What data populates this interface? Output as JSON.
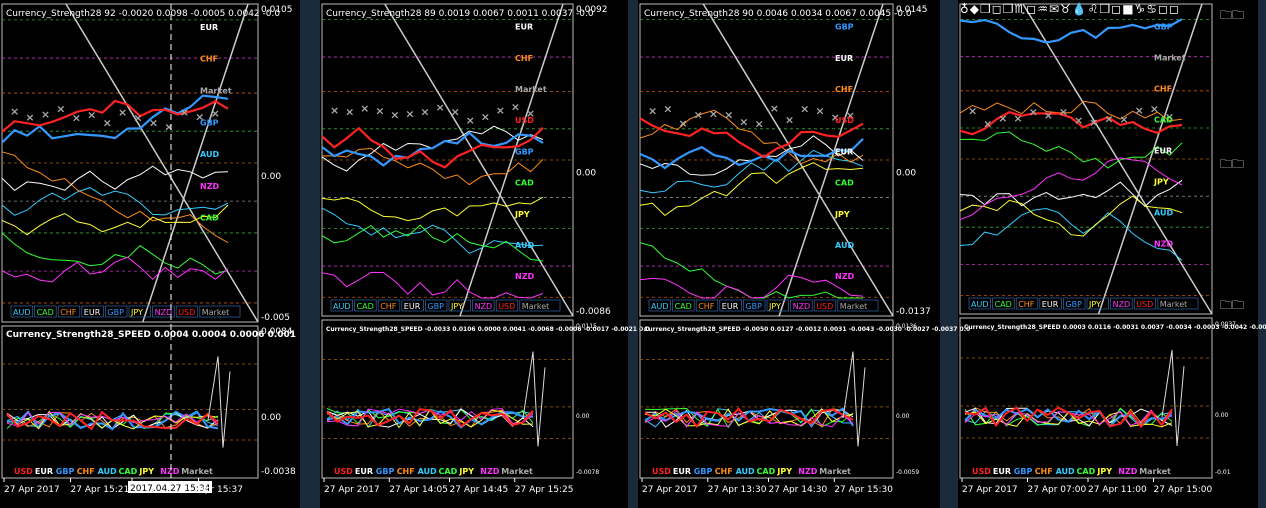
{
  "charts": [
    {
      "header": "Currency_Strength28 92 -0.0020 0.0098 -0.0005 0.0042 -0.0",
      "y_top": "0.0105",
      "y_mid": "0.00",
      "y_bot": "-0.005",
      "labels": [
        "EUR",
        "CHF",
        "Market",
        "GBP",
        "AUD",
        "NZD",
        "CAD"
      ],
      "legend": [
        "AUD",
        "CAD",
        "CHF",
        "EUR",
        "GBP",
        "JPY",
        "NZD",
        "USD",
        "Market"
      ],
      "speed_header": "Currency_Strength28_SPEED  0.0004 0.0004 0.0006 0.001",
      "speed_top": "0.0084",
      "speed_mid": "0.00",
      "speed_bot": "-0.0038",
      "speed_legend": [
        "USD",
        "EUR",
        "GBP",
        "CHF",
        "AUD",
        "CAD",
        "JPY",
        "NZD",
        "Market"
      ],
      "times": [
        "27 Apr 2017",
        "27 Apr 15:21",
        "2017.04.27 15:34",
        "Apr 15:37"
      ]
    },
    {
      "header": "Currency_Strength28 89 0.0019 0.0067 0.0011 0.0037 -0.0",
      "y_top": "0.0092",
      "y_mid": "0.00",
      "y_bot": "-0.0086",
      "labels": [
        "EUR",
        "CHF",
        "Market",
        "USD",
        "GBP",
        "CAD",
        "JPY",
        "AUD",
        "NZD"
      ],
      "legend": [
        "AUD",
        "CAD",
        "CHF",
        "EUR",
        "GBP",
        "JPY",
        "NZD",
        "USD",
        "Market"
      ],
      "speed_header": "Currency_Strength28_SPEED  -0.0033 0.0106 0.0000 0.0041 -0.0068 -0.0006 -0.0017 -0.0021 0.0",
      "speed_top": "0.0115",
      "speed_mid": "0.00",
      "speed_bot": "-0.0078",
      "speed_legend": [
        "USD",
        "EUR",
        "GBP",
        "CHF",
        "AUD",
        "CAD",
        "JPY",
        "NZD",
        "Market"
      ],
      "times": [
        "27 Apr 2017",
        "27 Apr 14:05",
        "27 Apr 14:45",
        "27 Apr 15:25"
      ]
    },
    {
      "header": "Currency_Strength28 90 0.0046 0.0034 0.0067 0.0045 -0.0",
      "y_top": "0.0145",
      "y_mid": "0.00",
      "y_bot": "-0.0137",
      "labels": [
        "GBP",
        "EUR",
        "CHF",
        "USD",
        "EUR",
        "CAD",
        "JPY",
        "AUD",
        "NZD"
      ],
      "legend": [
        "AUD",
        "CAD",
        "CHF",
        "EUR",
        "GBP",
        "JPY",
        "NZD",
        "USD",
        "Market"
      ],
      "speed_header": "Currency_Strength28_SPEED  -0.0050 0.0127 -0.0012 0.0031 -0.0043 -0.0030 -0.0027 -0.0037 0.0",
      "speed_top": "0.0136",
      "speed_mid": "0.00",
      "speed_bot": "-0.0059",
      "speed_legend": [
        "USD",
        "EUR",
        "GBP",
        "CHF",
        "AUD",
        "CAD",
        "JPY",
        "NZD",
        "Market"
      ],
      "times": [
        "27 Apr 2017",
        "27 Apr 13:30",
        "27 Apr 14:30",
        "27 Apr 15:30"
      ]
    },
    {
      "header": "",
      "y_top": "",
      "y_mid": "",
      "y_bot": "",
      "labels": [
        "GBP",
        "Market",
        "CHF",
        "CAD",
        "EUR",
        "JPY",
        "AUD",
        "NZD"
      ],
      "legend": [
        "AUD",
        "CAD",
        "CHF",
        "EUR",
        "GBP",
        "JPY",
        "NZD",
        "USD",
        "Market"
      ],
      "speed_header": "Currency_Strength28_SPEED  0.0003 0.0116 -0.0031 0.0037 -0.0034 -0.0003 -0.0042 -0.0035 0.00",
      "speed_top": "0.0037",
      "speed_mid": "0.00",
      "speed_bot": "-0.01",
      "speed_legend": [
        "USD",
        "EUR",
        "GBP",
        "CHF",
        "AUD",
        "CAD",
        "JPY",
        "NZD",
        "Market"
      ],
      "times": [
        "27 Apr 2017",
        "27 Apr 07:00",
        "27 Apr 11:00",
        "27 Apr 15:00"
      ]
    }
  ],
  "toolbar_glyphs": "♁◆❒◻❐♏◻♒✉♉💧♌❒◻■♑♋◻◻",
  "colors": {
    "AUD": "#33ccff",
    "CAD": "#33ff33",
    "CHF": "#ff8c1a",
    "EUR": "#ffffff",
    "GBP": "#3399ff",
    "JPY": "#ffff33",
    "NZD": "#ff33ff",
    "USD": "#ff2222",
    "Market": "#aaaaaa"
  }
}
